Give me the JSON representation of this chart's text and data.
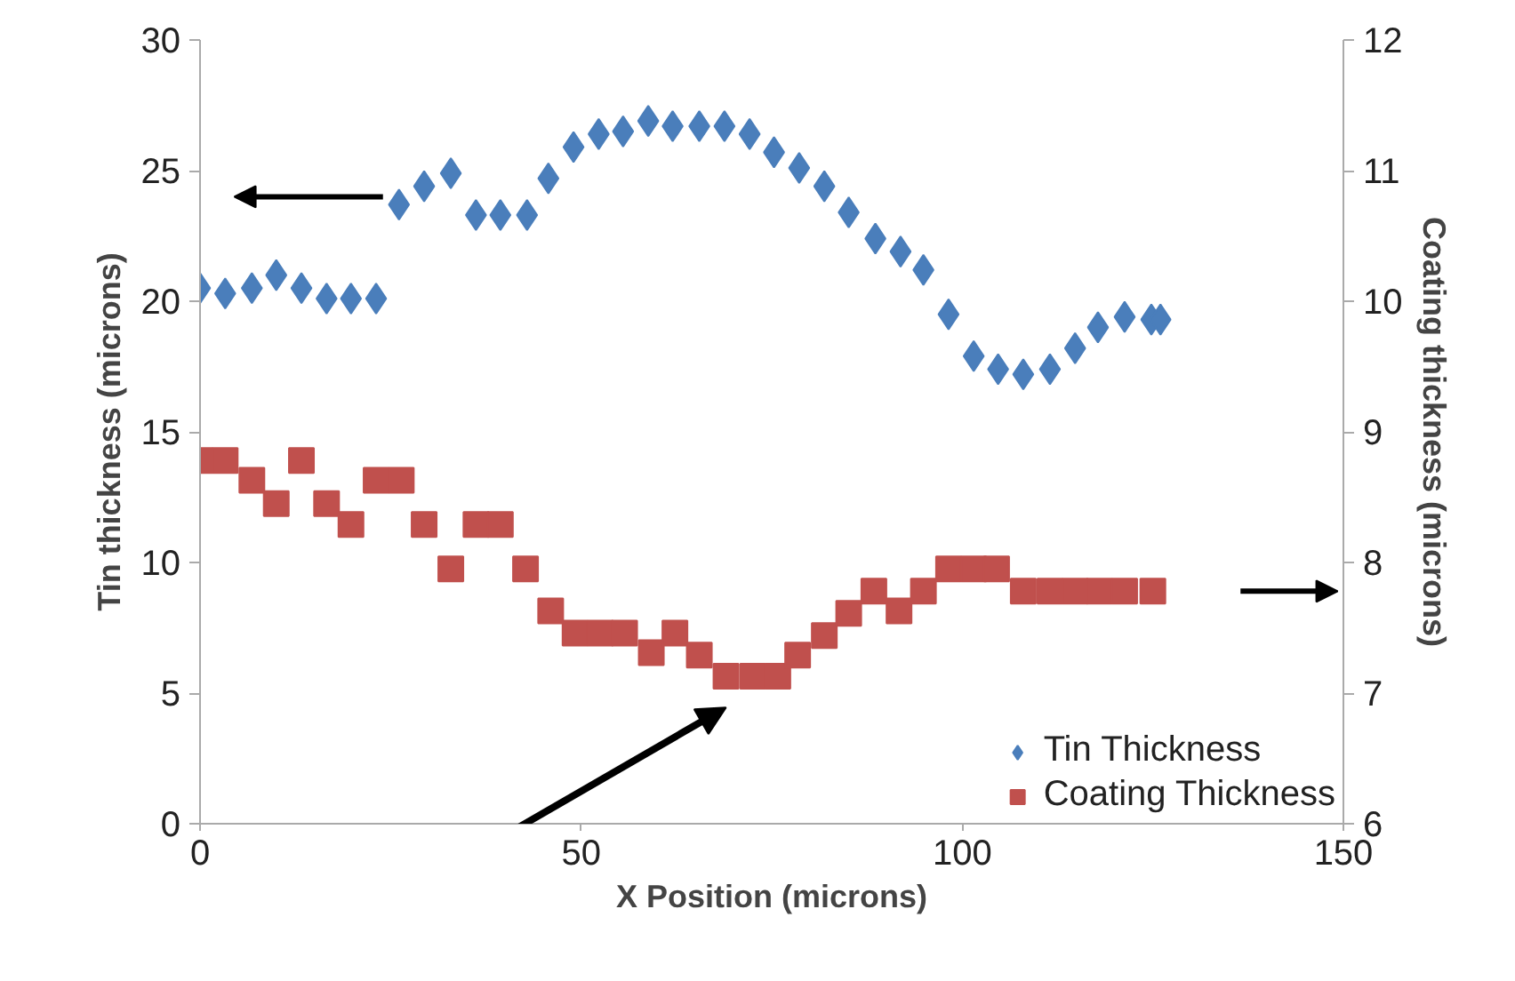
{
  "chart_data": {
    "type": "scatter",
    "xlabel": "X Position (microns)",
    "ylabel": "Tin thickness (microns)",
    "y2label": "Coating thickness (microns)",
    "xlim": [
      0,
      150
    ],
    "xticks": [
      0,
      50,
      100,
      150
    ],
    "ylim": [
      0,
      30
    ],
    "yticks": [
      0,
      5,
      10,
      15,
      20,
      25,
      30
    ],
    "y2lim": [
      6,
      12
    ],
    "y2ticks": [
      6,
      7,
      8,
      9,
      10,
      11,
      12
    ],
    "grid": false,
    "legend": "bottom right",
    "series": [
      {
        "name": "Tin Thickness",
        "color": "#4a7ebb",
        "marker": "diamond",
        "x": [
          0,
          3.3,
          6.8,
          10,
          13.3,
          16.6,
          19.8,
          23.1,
          26.1,
          29.4,
          32.9,
          36.2,
          39.4,
          42.9,
          45.7,
          49,
          52.3,
          55.5,
          58.8,
          62,
          65.5,
          68.8,
          72.1,
          75.3,
          78.6,
          81.9,
          85.1,
          88.6,
          91.9,
          94.9,
          98.2,
          101.5,
          104.7,
          108,
          111.5,
          114.8,
          117.8,
          121.3,
          124.8,
          126
        ],
        "values": [
          20.5,
          20.3,
          20.5,
          21.0,
          20.5,
          20.1,
          20.1,
          20.1,
          23.7,
          24.4,
          24.9,
          23.3,
          23.3,
          23.3,
          24.7,
          25.9,
          26.4,
          26.5,
          26.9,
          26.7,
          26.7,
          26.7,
          26.4,
          25.7,
          25.1,
          24.4,
          23.4,
          22.4,
          21.9,
          21.2,
          19.5,
          17.9,
          17.4,
          17.2,
          17.4,
          18.2,
          19.0,
          19.4,
          19.3,
          19.3
        ]
      },
      {
        "name": "Coating Thickness",
        "color": "#c0504d",
        "marker": "square",
        "axis": "y2",
        "x": [
          0,
          3.3,
          6.8,
          10,
          13.3,
          16.6,
          19.8,
          23.1,
          26.4,
          29.4,
          32.9,
          36.2,
          39.4,
          42.7,
          46,
          49.2,
          52.5,
          55.7,
          59.2,
          62.3,
          65.5,
          69,
          72.5,
          75.8,
          78.4,
          81.9,
          85.1,
          88.4,
          91.7,
          94.9,
          98.2,
          101.5,
          104.5,
          108,
          111.5,
          114.8,
          118,
          121.3,
          125
        ],
        "values": [
          8.78,
          8.78,
          8.63,
          8.45,
          8.78,
          8.45,
          8.29,
          8.63,
          8.63,
          8.29,
          7.95,
          8.29,
          8.29,
          7.95,
          7.63,
          7.46,
          7.46,
          7.46,
          7.31,
          7.46,
          7.29,
          7.13,
          7.13,
          7.13,
          7.29,
          7.44,
          7.61,
          7.78,
          7.63,
          7.78,
          7.95,
          7.95,
          7.95,
          7.78,
          7.78,
          7.78,
          7.78,
          7.78,
          7.78
        ]
      }
    ]
  }
}
